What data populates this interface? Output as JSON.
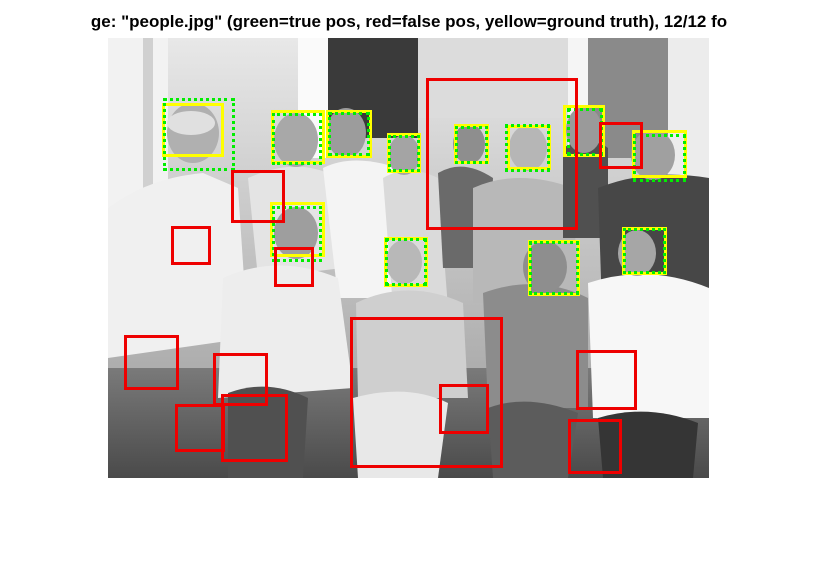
{
  "figure": {
    "title": "ge: \"people.jpg\" (green=true pos, red=false pos, yellow=ground truth), 12/12 fo",
    "image_description": "people.jpg",
    "colors": {
      "true_positive": "#00ee00",
      "false_positive": "#ee0000",
      "ground_truth": "#ffff00",
      "photo_background": "#bdbdbd"
    },
    "detection_counts": {
      "true_positives": 12,
      "ground_truth": 12,
      "false_positives": 14
    }
  }
}
